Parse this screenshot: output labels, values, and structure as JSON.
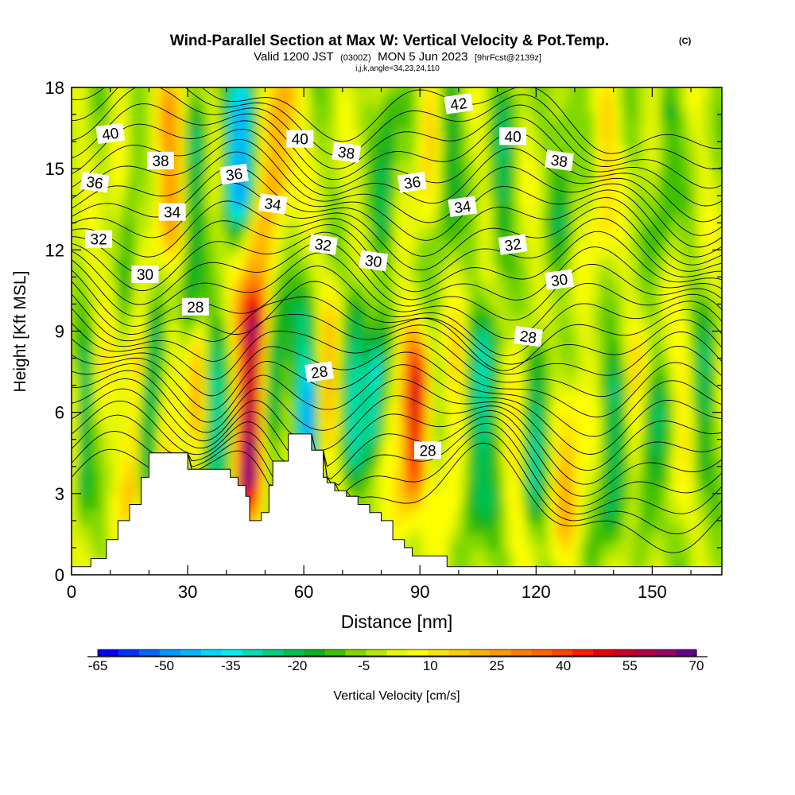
{
  "header": {
    "title": "Wind-Parallel Section at Max W: Vertical Velocity & Pot.Temp.",
    "title_mark": "(C)",
    "valid_prefix": "Valid 1200 JST",
    "valid_utc": "(0300Z)",
    "valid_date": "MON 5 Jun 2023",
    "valid_fcst": "[9hrFcst@2139z]",
    "indices": "i,j,k,angle=34,23,24,110"
  },
  "chart_data": {
    "type": "heatmap",
    "title": "Wind-Parallel Section at Max W: Vertical Velocity & Pot.Temp.",
    "xlabel": "Distance [nm]",
    "ylabel": "Height [Kft MSL]",
    "xlim": [
      0,
      168
    ],
    "ylim": [
      0,
      18
    ],
    "x_ticks": [
      0,
      30,
      60,
      90,
      120,
      150
    ],
    "y_ticks": [
      0,
      3,
      6,
      9,
      12,
      15,
      18
    ],
    "colorbar": {
      "label": "Vertical Velocity [cm/s]",
      "tick_labels": [
        "-65",
        "-50",
        "-35",
        "-20",
        "-5",
        "10",
        "25",
        "40",
        "55",
        "70"
      ],
      "range": [
        -65,
        70
      ],
      "step": 5,
      "colors": [
        "#0000ff",
        "#0033ff",
        "#0066ff",
        "#0099ff",
        "#00b8ff",
        "#00d8ff",
        "#00f0f0",
        "#00e0b0",
        "#00d080",
        "#00c050",
        "#10b020",
        "#40c000",
        "#80d800",
        "#b8e800",
        "#e8f800",
        "#ffff00",
        "#ffe600",
        "#ffcc00",
        "#ffb300",
        "#ff9900",
        "#ff8000",
        "#ff6600",
        "#ff4400",
        "#ff1a00",
        "#e60000",
        "#cc0022",
        "#b30044",
        "#990066",
        "#66008c"
      ]
    },
    "terrain_profile": [
      [
        0,
        0.3
      ],
      [
        5,
        0.6
      ],
      [
        9,
        1.3
      ],
      [
        12,
        2
      ],
      [
        15,
        2.6
      ],
      [
        18,
        3.6
      ],
      [
        20,
        4.5
      ],
      [
        28,
        4.5
      ],
      [
        30,
        3.9
      ],
      [
        39,
        3.9
      ],
      [
        41,
        3.6
      ],
      [
        43,
        3.3
      ],
      [
        45,
        2.9
      ],
      [
        46,
        2
      ],
      [
        49,
        2.3
      ],
      [
        51,
        3.3
      ],
      [
        52,
        4.2
      ],
      [
        56,
        5.2
      ],
      [
        61,
        5.2
      ],
      [
        62,
        4.6
      ],
      [
        65,
        3.6
      ],
      [
        66,
        3.4
      ],
      [
        68,
        3.1
      ],
      [
        71,
        2.9
      ],
      [
        74,
        2.6
      ],
      [
        77,
        2.3
      ],
      [
        80,
        2
      ],
      [
        83,
        1.3
      ],
      [
        86,
        1
      ],
      [
        88,
        0.7
      ],
      [
        94,
        0.7
      ],
      [
        97,
        0.3
      ],
      [
        168,
        0.3
      ]
    ],
    "theta_contour_labels": [
      {
        "text": "40",
        "x": 10,
        "y": 16.3
      },
      {
        "text": "38",
        "x": 23,
        "y": 15.3
      },
      {
        "text": "36",
        "x": 6,
        "y": 14.5
      },
      {
        "text": "36",
        "x": 42,
        "y": 14.8
      },
      {
        "text": "40",
        "x": 59,
        "y": 16.1
      },
      {
        "text": "38",
        "x": 71,
        "y": 15.6
      },
      {
        "text": "42",
        "x": 100,
        "y": 17.4
      },
      {
        "text": "40",
        "x": 114,
        "y": 16.2
      },
      {
        "text": "38",
        "x": 126,
        "y": 15.3
      },
      {
        "text": "36",
        "x": 88,
        "y": 14.5
      },
      {
        "text": "34",
        "x": 26,
        "y": 13.4
      },
      {
        "text": "34",
        "x": 52,
        "y": 13.7
      },
      {
        "text": "34",
        "x": 101,
        "y": 13.6
      },
      {
        "text": "32",
        "x": 7,
        "y": 12.4
      },
      {
        "text": "32",
        "x": 65,
        "y": 12.2
      },
      {
        "text": "32",
        "x": 114,
        "y": 12.2
      },
      {
        "text": "30",
        "x": 19,
        "y": 11.1
      },
      {
        "text": "30",
        "x": 78,
        "y": 11.6
      },
      {
        "text": "30",
        "x": 126,
        "y": 10.9
      },
      {
        "text": "28",
        "x": 32,
        "y": 9.9
      },
      {
        "text": "28",
        "x": 118,
        "y": 8.8
      },
      {
        "text": "28",
        "x": 64,
        "y": 7.5
      },
      {
        "text": "28",
        "x": 92,
        "y": 4.6
      }
    ]
  }
}
